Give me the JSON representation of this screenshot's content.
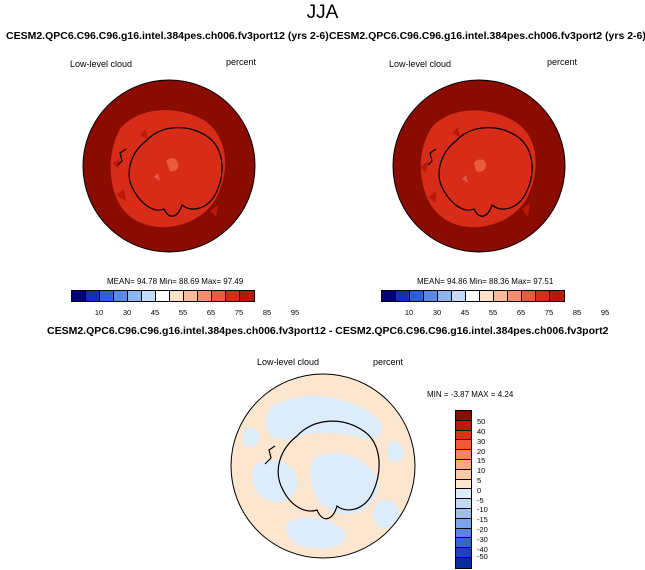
{
  "season": "JJA",
  "panel1": {
    "title": "CESM2.QPC6.C96.C96.g16.intel.384pes.ch006.fv3port12 (yrs 2-6)",
    "left_label": "Low-level cloud",
    "right_label": "percent",
    "stats": "MEAN= 94.78 Min= 88.69 Max= 97.49"
  },
  "panel2": {
    "title": "CESM2.QPC6.C96.C96.g16.intel.384pes.ch006.fv3port2 (yrs 2-6)",
    "left_label": "Low-level cloud",
    "right_label": "percent",
    "stats": "MEAN= 94.86 Min= 88.36 Max= 97.51"
  },
  "panel3": {
    "title": "CESM2.QPC6.C96.C96.g16.intel.384pes.ch006.fv3port12 - CESM2.QPC6.C96.C96.g16.intel.384pes.ch006.fv3port2",
    "left_label": "Low-level cloud",
    "right_label": "percent",
    "stats": "MIN = -3.87 MAX = 4.24"
  },
  "colorbar_abs": {
    "colors": [
      "#00007d",
      "#1230b0",
      "#2b60d8",
      "#5a8ae6",
      "#8fb4f0",
      "#c4dcf8",
      "#ffffff",
      "#fde0c8",
      "#fbb89a",
      "#f58c6b",
      "#ea5a3c",
      "#d62c18",
      "#b81a08",
      "#8a0c00"
    ],
    "labels": [
      "10",
      "30",
      "45",
      "55",
      "65",
      "75",
      "85",
      "95"
    ]
  },
  "colorbar_diff": {
    "colors": [
      "#8a0c00",
      "#bc1a06",
      "#de3216",
      "#f05a34",
      "#f7845a",
      "#faa882",
      "#fccaa8",
      "#fde6d0",
      "#ddecfa",
      "#c2d8f6",
      "#9fbff0",
      "#7ba4ea",
      "#5886e2",
      "#3766d4",
      "#1c44b8",
      "#0a2a9a",
      "#001a80"
    ],
    "labels": [
      "50",
      "40",
      "30",
      "20",
      "15",
      "10",
      "5",
      "0",
      "-5",
      "-10",
      "-15",
      "-20",
      "-30",
      "-40",
      "-50"
    ]
  }
}
